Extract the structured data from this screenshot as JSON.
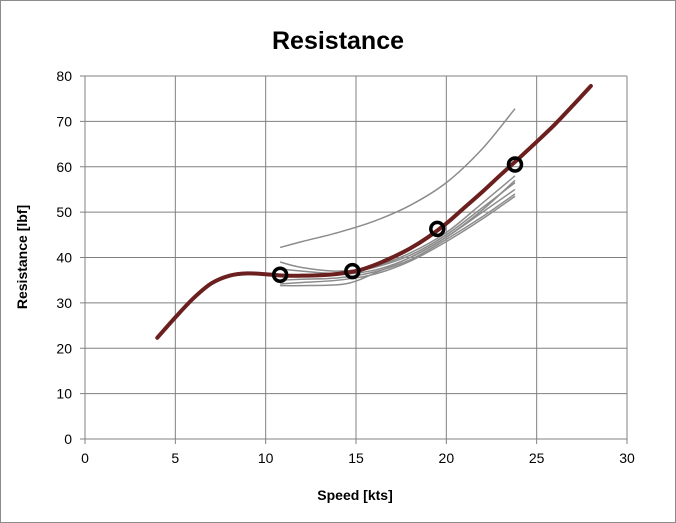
{
  "chart_data": {
    "type": "line",
    "title": "Resistance",
    "xlabel": "Speed [kts]",
    "ylabel": "Resistance [lbf]",
    "xlim": [
      0,
      30
    ],
    "ylim": [
      0,
      80
    ],
    "x_ticks": [
      "0",
      "5",
      "10",
      "15",
      "20",
      "25",
      "30"
    ],
    "y_ticks": [
      "0",
      "10",
      "20",
      "30",
      "40",
      "50",
      "60",
      "70",
      "80"
    ],
    "grid": true,
    "legend": "none",
    "colors": {
      "main": "#6b1f1f",
      "thin": "#8c8c8c",
      "markers": "#000000",
      "grid": "#808080"
    },
    "main_curve": {
      "x": [
        4,
        5,
        6,
        7,
        8,
        9,
        10,
        11,
        12,
        13,
        14,
        15,
        16,
        17,
        18,
        19,
        20,
        21,
        22,
        23,
        24,
        25,
        26,
        27,
        28
      ],
      "y": [
        22.3,
        26.8,
        31.0,
        34.3,
        36.0,
        36.5,
        36.3,
        36.0,
        36.0,
        36.1,
        36.4,
        37.0,
        38.3,
        40.0,
        42.0,
        44.5,
        47.5,
        51.0,
        54.5,
        58.2,
        61.8,
        65.5,
        69.3,
        73.5,
        77.8
      ]
    },
    "markers": {
      "x": [
        10.8,
        14.8,
        19.5,
        23.8
      ],
      "y": [
        36.2,
        37.0,
        46.3,
        60.5
      ]
    },
    "thin_series": [
      {
        "x": [
          10.8,
          12,
          14,
          16,
          18,
          20,
          22,
          23.8
        ],
        "y": [
          42.2,
          43.5,
          45.5,
          48.0,
          51.5,
          56.5,
          64.0,
          72.8
        ]
      },
      {
        "x": [
          10.8,
          12,
          14,
          16,
          18,
          20,
          22,
          23.8
        ],
        "y": [
          39.0,
          37.8,
          37.0,
          38.0,
          41.0,
          45.5,
          52.0,
          58.0
        ]
      },
      {
        "x": [
          10.8,
          12,
          14,
          16,
          18,
          20,
          22,
          23.8
        ],
        "y": [
          37.5,
          37.0,
          36.5,
          37.8,
          40.5,
          45.0,
          51.0,
          56.5
        ]
      },
      {
        "x": [
          10.8,
          12,
          14,
          16,
          18,
          20,
          22,
          23.8
        ],
        "y": [
          36.0,
          36.0,
          36.2,
          37.2,
          40.0,
          44.5,
          50.0,
          55.0
        ]
      },
      {
        "x": [
          10.8,
          12,
          14,
          16,
          18,
          20,
          22,
          23.8
        ],
        "y": [
          35.0,
          35.2,
          35.5,
          36.8,
          39.5,
          44.0,
          49.0,
          54.0
        ]
      },
      {
        "x": [
          10.8,
          12,
          14,
          16,
          18,
          20,
          22,
          23.8
        ],
        "y": [
          34.2,
          34.5,
          35.0,
          36.3,
          39.2,
          43.5,
          48.5,
          53.5
        ]
      },
      {
        "x": [
          10.8,
          12,
          14,
          15,
          16,
          18,
          20,
          22,
          23.8
        ],
        "y": [
          33.8,
          33.8,
          34.0,
          34.8,
          36.5,
          40.0,
          44.5,
          50.5,
          57.0
        ]
      }
    ]
  }
}
